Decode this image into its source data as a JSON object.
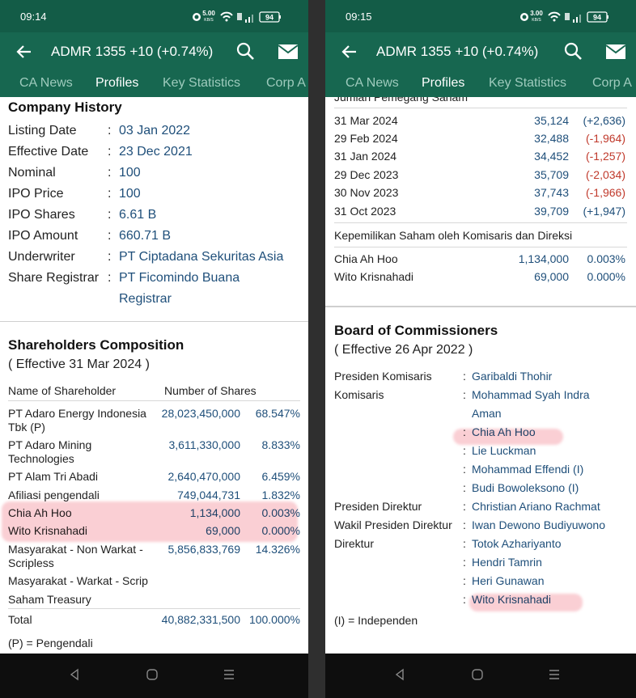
{
  "screens": [
    {
      "status": {
        "time": "09:14",
        "net_speed": "5.00",
        "net_unit": "KB/S",
        "battery": "94"
      },
      "header": {
        "title": "ADMR 1355 +10 (+0.74%)"
      },
      "tabs": [
        "CA News",
        "Profiles",
        "Key Statistics",
        "Corp A"
      ],
      "active_tab": 1,
      "company_history": {
        "title": "Company History",
        "separator": ":",
        "rows": [
          {
            "label": "Listing Date",
            "value": "03 Jan 2022"
          },
          {
            "label": "Effective Date",
            "value": "23 Dec 2021"
          },
          {
            "label": "Nominal",
            "value": "100"
          },
          {
            "label": "IPO Price",
            "value": "100"
          },
          {
            "label": "IPO Shares",
            "value": "6.61 B"
          },
          {
            "label": "IPO Amount",
            "value": "660.71 B"
          },
          {
            "label": "Underwriter",
            "value": "PT Ciptadana Sekuritas Asia"
          },
          {
            "label": "Share Registrar",
            "value": "PT Ficomindo Buana Registrar"
          }
        ]
      },
      "shareholders": {
        "title": "Shareholders Composition",
        "subtitle": "( Effective 31 Mar 2024 )",
        "columns": [
          "Name of Shareholder",
          "Number of Shares"
        ],
        "rows": [
          [
            "PT Adaro Energy Indonesia Tbk (P)",
            "28,023,450,000",
            "68.547%"
          ],
          [
            "PT Adaro Mining Technologies",
            "3,611,330,000",
            "8.833%"
          ],
          [
            "PT Alam Tri Abadi",
            "2,640,470,000",
            "6.459%"
          ],
          [
            "Afiliasi pengendali",
            "749,044,731",
            "1.832%"
          ],
          [
            "Chia Ah Hoo",
            "1,134,000",
            "0.003%"
          ],
          [
            "Wito Krisnahadi",
            "69,000",
            "0.000%"
          ],
          [
            "Masyarakat - Non Warkat - Scripless",
            "5,856,833,769",
            "14.326%"
          ],
          [
            "Masyarakat - Warkat - Scrip"
          ],
          [
            "Saham Treasury"
          ]
        ],
        "total": [
          "Total",
          "40,882,331,500",
          "100.000%"
        ],
        "note": "(P) = Pengendali"
      }
    },
    {
      "status": {
        "time": "09:15",
        "net_speed": "3.00",
        "net_unit": "KB/S",
        "battery": "94"
      },
      "header": {
        "title": "ADMR 1355 +10 (+0.74%)"
      },
      "tabs": [
        "CA News",
        "Profiles",
        "Key Statistics",
        "Corp A"
      ],
      "active_tab": 1,
      "holder_count": {
        "title": "Jumlah Pemegang Saham",
        "rows": [
          [
            "31 Mar 2024",
            "35,124",
            "(+2,636)"
          ],
          [
            "29 Feb 2024",
            "32,488",
            "(-1,964)"
          ],
          [
            "31 Jan 2024",
            "34,452",
            "(-1,257)"
          ],
          [
            "29 Dec 2023",
            "35,709",
            "(-2,034)"
          ],
          [
            "30 Nov 2023",
            "37,743",
            "(-1,966)"
          ],
          [
            "31 Oct 2023",
            "39,709",
            "(+1,947)"
          ]
        ]
      },
      "insider_ownership": {
        "title": "Kepemilikan Saham oleh Komisaris dan Direksi",
        "rows": [
          [
            "Chia Ah Hoo",
            "1,134,000",
            "0.003%"
          ],
          [
            "Wito Krisnahadi",
            "69,000",
            "0.000%"
          ]
        ]
      },
      "board": {
        "title": "Board of Commissioners",
        "subtitle": "( Effective 26 Apr 2022 )",
        "separator": ":",
        "rows": [
          {
            "role": "Presiden Komisaris",
            "names": [
              "Garibaldi Thohir"
            ]
          },
          {
            "role": "Komisaris",
            "names": [
              "Mohammad Syah Indra Aman",
              "Chia Ah Hoo",
              "Lie Luckman",
              "Mohammad Effendi (I)",
              "Budi Bowoleksono (I)"
            ]
          },
          {
            "role": "Presiden Direktur",
            "names": [
              "Christian Ariano Rachmat"
            ]
          },
          {
            "role": "Wakil Presiden Direktur",
            "names": [
              "Iwan Dewono Budiyuwono"
            ]
          },
          {
            "role": "Direktur",
            "names": [
              "Totok Azhariyanto",
              "Hendri Tamrin",
              "Heri Gunawan",
              "Wito Krisnahadi"
            ]
          }
        ],
        "note": "(I) = Independen"
      }
    }
  ]
}
